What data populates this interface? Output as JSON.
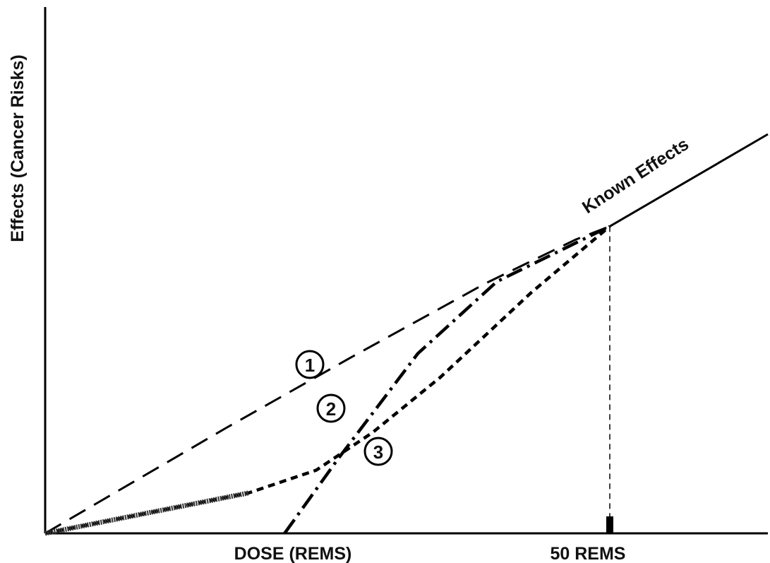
{
  "chart_data": {
    "type": "line",
    "xlabel": "DOSE (REMS)",
    "ylabel": "Effects (Cancer Risks)",
    "xlim": [
      0,
      64
    ],
    "ylim": [
      0,
      60
    ],
    "tick_marks": [
      {
        "x": 50,
        "label": "50 REMS"
      }
    ],
    "grid": false,
    "series": [
      {
        "name": "Known Effects",
        "style": "solid",
        "x": [
          50,
          64
        ],
        "y": [
          35,
          45.5
        ]
      },
      {
        "name": "1",
        "style": "long-dash",
        "x": [
          0,
          16,
          27,
          39,
          47,
          50
        ],
        "y": [
          0,
          12,
          20,
          28.5,
          33.5,
          35
        ]
      },
      {
        "name": "2",
        "style": "short-dash",
        "x": [
          0,
          18,
          24,
          29,
          35,
          43,
          50
        ],
        "y": [
          0,
          4.6,
          7.2,
          11.5,
          17.8,
          27.4,
          35
        ]
      },
      {
        "name": "3",
        "style": "dash-dot",
        "x": [
          21.2,
          26,
          33,
          40,
          50
        ],
        "y": [
          0,
          8.6,
          20.5,
          28.7,
          35
        ]
      }
    ],
    "annotations": [
      {
        "text": "Known Effects",
        "near_series": "Known Effects"
      },
      {
        "text": "1",
        "near_series": "1"
      },
      {
        "text": "2",
        "near_series": "2"
      },
      {
        "text": "3",
        "near_series": "3"
      }
    ]
  }
}
